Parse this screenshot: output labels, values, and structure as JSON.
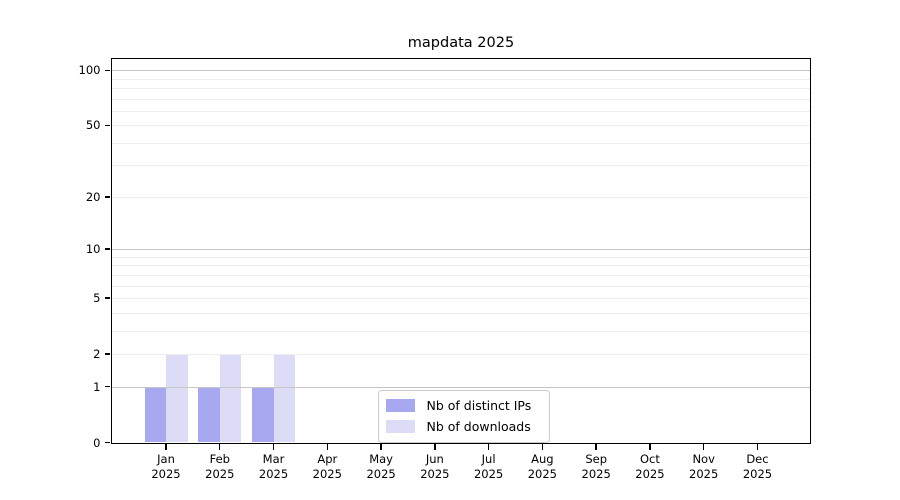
{
  "chart_data": {
    "type": "bar",
    "title": "mapdata 2025",
    "xlabel": "",
    "ylabel": "",
    "categories": [
      "Jan",
      "Feb",
      "Mar",
      "Apr",
      "May",
      "Jun",
      "Jul",
      "Aug",
      "Sep",
      "Oct",
      "Nov",
      "Dec"
    ],
    "year_label": "2025",
    "series": [
      {
        "name": "Nb of distinct IPs",
        "color": "#a8a8f0",
        "values": [
          1,
          1,
          1,
          0,
          0,
          0,
          0,
          0,
          0,
          0,
          0,
          0
        ]
      },
      {
        "name": "Nb of downloads",
        "color": "#dcdcf6",
        "values": [
          2,
          2,
          2,
          0,
          0,
          0,
          0,
          0,
          0,
          0,
          0,
          0
        ]
      }
    ],
    "yscale": "log1p",
    "ylim": [
      0,
      115
    ],
    "yticks": [
      100,
      50,
      20,
      10,
      5,
      2,
      1,
      0
    ],
    "major_gridlines": [
      1,
      10,
      100
    ],
    "minor_gridlines": [
      2,
      3,
      4,
      5,
      6,
      7,
      8,
      9,
      20,
      30,
      40,
      50,
      60,
      70,
      80,
      90
    ],
    "grid": true,
    "legend_position": "lower center"
  },
  "colors": {
    "bar_distinct_ips": "#a8a8f0",
    "bar_downloads": "#dcdcf6",
    "grid_major": "#c6c6c6",
    "grid_minor": "#ededed",
    "spine": "#000000",
    "legend_border": "#cccccc",
    "background": "#ffffff"
  }
}
